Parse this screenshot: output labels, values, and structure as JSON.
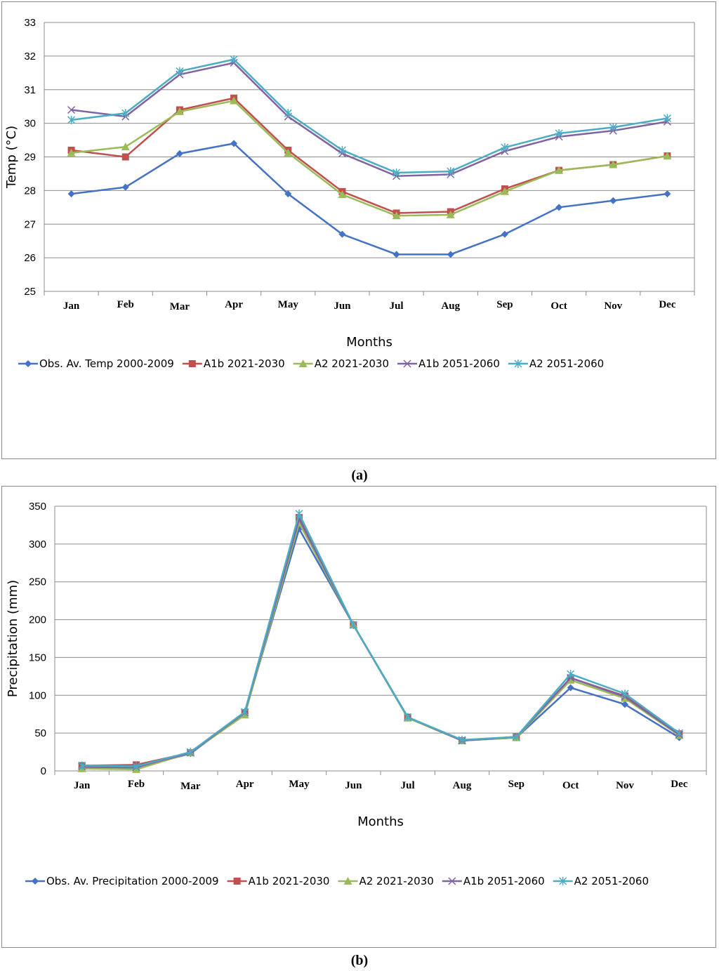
{
  "chart_data": [
    {
      "panel_label": "(a)",
      "type": "line",
      "xlabel": "Months",
      "ylabel": "Temp (°C)",
      "ylim": [
        25,
        33
      ],
      "yticks": [
        "25",
        "26",
        "27",
        "28",
        "29",
        "30",
        "31",
        "32",
        "33"
      ],
      "grid": true,
      "legend_position": "bottom",
      "categories": [
        "Jan",
        "Feb",
        "Mar",
        "Apr",
        "May",
        "Jun",
        "Jul",
        "Aug",
        "Sep",
        "Oct",
        "Nov",
        "Dec"
      ],
      "series": [
        {
          "name": "Obs. Av. Temp 2000-2009",
          "color": "#4472c4",
          "marker": "diamond",
          "values": [
            27.9,
            28.1,
            29.1,
            29.4,
            27.9,
            26.7,
            26.1,
            26.1,
            26.7,
            27.5,
            27.7,
            27.9
          ]
        },
        {
          "name": "A1b 2021-2030",
          "color": "#c0504d",
          "marker": "square",
          "values": [
            29.2,
            29.0,
            30.4,
            30.75,
            29.2,
            27.97,
            27.33,
            27.37,
            28.05,
            28.6,
            28.77,
            29.03
          ]
        },
        {
          "name": "A2 2021-2030",
          "color": "#9bbb59",
          "marker": "triangle",
          "values": [
            29.12,
            29.3,
            30.35,
            30.67,
            29.12,
            27.88,
            27.25,
            27.28,
            27.97,
            28.6,
            28.77,
            29.03
          ]
        },
        {
          "name": "A1b 2051-2060",
          "color": "#8064a2",
          "marker": "x",
          "values": [
            30.4,
            30.2,
            31.45,
            31.8,
            30.2,
            29.1,
            28.43,
            28.48,
            29.17,
            29.6,
            29.78,
            30.05
          ]
        },
        {
          "name": "A2 2051-2060",
          "color": "#4bacc6",
          "marker": "star",
          "values": [
            30.1,
            30.3,
            31.55,
            31.9,
            30.3,
            29.2,
            28.53,
            28.57,
            29.28,
            29.7,
            29.88,
            30.15
          ]
        }
      ]
    },
    {
      "panel_label": "(b)",
      "type": "line",
      "xlabel": "Months",
      "ylabel": "Precipitation (mm)",
      "ylim": [
        0,
        350
      ],
      "yticks": [
        "0",
        "50",
        "100",
        "150",
        "200",
        "250",
        "300",
        "350"
      ],
      "grid": true,
      "legend_position": "bottom",
      "categories": [
        "Jan",
        "Feb",
        "Mar",
        "Apr",
        "May",
        "Jun",
        "Jul",
        "Aug",
        "Sep",
        "Oct",
        "Nov",
        "Dec"
      ],
      "series": [
        {
          "name": "Obs. Av. Precipitation 2000-2009",
          "color": "#4472c4",
          "marker": "diamond",
          "values": [
            4,
            4,
            23,
            76,
            320,
            193,
            71,
            40,
            44,
            110,
            88,
            44
          ]
        },
        {
          "name": "A1b 2021-2030",
          "color": "#c0504d",
          "marker": "square",
          "values": [
            7,
            8,
            24,
            77,
            335,
            193,
            71,
            40,
            45,
            123,
            99,
            49
          ]
        },
        {
          "name": "A2 2021-2030",
          "color": "#9bbb59",
          "marker": "triangle",
          "values": [
            3,
            2,
            24,
            74,
            328,
            193,
            70,
            40,
            44,
            120,
            96,
            47
          ]
        },
        {
          "name": "A1b 2051-2060",
          "color": "#8064a2",
          "marker": "x",
          "values": [
            6,
            5,
            24,
            77,
            333,
            193,
            71,
            40,
            45,
            123,
            98,
            48
          ]
        },
        {
          "name": "A2 2051-2060",
          "color": "#4bacc6",
          "marker": "star",
          "values": [
            7,
            6,
            25,
            78,
            340,
            193,
            71,
            41,
            45,
            128,
            102,
            50
          ]
        }
      ]
    }
  ]
}
